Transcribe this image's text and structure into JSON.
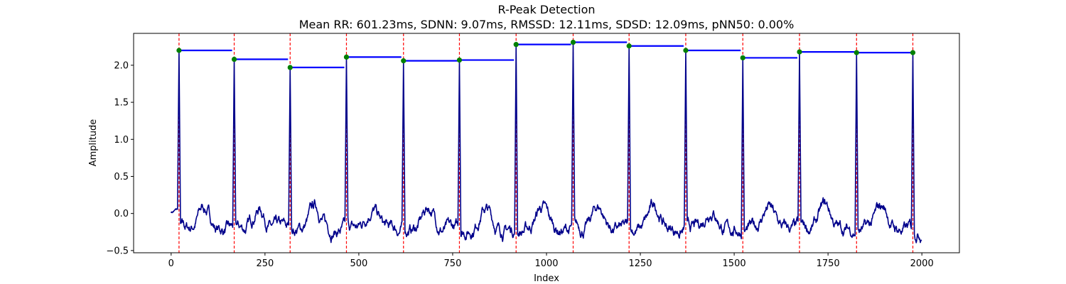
{
  "chart_data": {
    "type": "line",
    "title": "R-Peak Detection",
    "subtitle": "Mean RR: 601.23ms, SDNN: 9.07ms, RMSSD: 12.11ms, SDSD: 12.09ms, pNN50: 0.00%",
    "xlabel": "Index",
    "ylabel": "Amplitude",
    "xlim": [
      -100,
      2100
    ],
    "ylim": [
      -0.53,
      2.43
    ],
    "xticks": [
      0,
      250,
      500,
      750,
      1000,
      1250,
      1500,
      1750,
      2000
    ],
    "yticks": [
      -0.5,
      0.0,
      0.5,
      1.0,
      1.5,
      2.0
    ],
    "grid": false,
    "colors": {
      "signal": "#00008b",
      "peak_line": "#ff0000",
      "peak_marker": "#008000",
      "rr_segment": "#0000ff"
    },
    "signal_x_range": [
      0,
      1999
    ],
    "r_peaks": [
      {
        "x": 21,
        "y": 2.2
      },
      {
        "x": 168,
        "y": 2.08
      },
      {
        "x": 317,
        "y": 1.97
      },
      {
        "x": 467,
        "y": 2.11
      },
      {
        "x": 619,
        "y": 2.06
      },
      {
        "x": 768,
        "y": 2.07
      },
      {
        "x": 919,
        "y": 2.28
      },
      {
        "x": 1071,
        "y": 2.31
      },
      {
        "x": 1220,
        "y": 2.26
      },
      {
        "x": 1371,
        "y": 2.2
      },
      {
        "x": 1523,
        "y": 2.1
      },
      {
        "x": 1674,
        "y": 2.18
      },
      {
        "x": 1826,
        "y": 2.17
      },
      {
        "x": 1976,
        "y": 2.17
      }
    ]
  }
}
